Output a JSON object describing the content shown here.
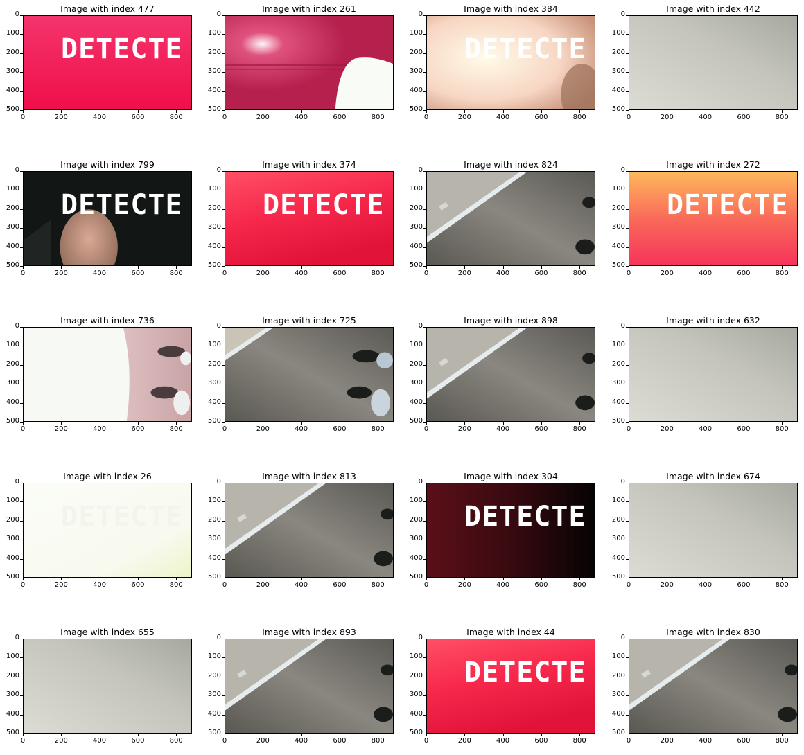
{
  "axes": {
    "y_ticks": [
      "0",
      "100",
      "200",
      "300",
      "400",
      "500"
    ],
    "x_ticks": [
      "0",
      "200",
      "400",
      "600",
      "800"
    ]
  },
  "overlay_text": "DETECTE",
  "panels": [
    {
      "title": "Image with index 477",
      "scene": "pink",
      "overlay": true,
      "overlay_color": "#ffffff"
    },
    {
      "title": "Image with index 261",
      "scene": "pink-glare",
      "overlay": false
    },
    {
      "title": "Image with index 384",
      "scene": "bright",
      "overlay": true,
      "overlay_color": "#ffffff"
    },
    {
      "title": "Image with index 442",
      "scene": "wall",
      "overlay": false
    },
    {
      "title": "Image with index 799",
      "scene": "dark-finger",
      "overlay": true,
      "overlay_color": "#ffffff"
    },
    {
      "title": "Image with index 374",
      "scene": "red",
      "overlay": true,
      "overlay_color": "#ffffff"
    },
    {
      "title": "Image with index 824",
      "scene": "floor",
      "overlay": false
    },
    {
      "title": "Image with index 272",
      "scene": "orange",
      "overlay": true,
      "overlay_color": "#ffffff"
    },
    {
      "title": "Image with index 736",
      "scene": "white-feet",
      "overlay": false
    },
    {
      "title": "Image with index 725",
      "scene": "floor-feet",
      "overlay": false
    },
    {
      "title": "Image with index 898",
      "scene": "floor",
      "overlay": false
    },
    {
      "title": "Image with index 632",
      "scene": "wall",
      "overlay": false
    },
    {
      "title": "Image with index 26",
      "scene": "white",
      "overlay": true,
      "overlay_color": "#f4f4ec"
    },
    {
      "title": "Image with index 813",
      "scene": "floor",
      "overlay": false
    },
    {
      "title": "Image with index 304",
      "scene": "dark-red",
      "overlay": true,
      "overlay_color": "#ffffff"
    },
    {
      "title": "Image with index 674",
      "scene": "wall",
      "overlay": false
    },
    {
      "title": "Image with index 655",
      "scene": "wall",
      "overlay": false
    },
    {
      "title": "Image with index 893",
      "scene": "floor",
      "overlay": false
    },
    {
      "title": "Image with index 44",
      "scene": "red",
      "overlay": true,
      "overlay_color": "#ffffff"
    },
    {
      "title": "Image with index 830",
      "scene": "floor",
      "overlay": false
    }
  ]
}
